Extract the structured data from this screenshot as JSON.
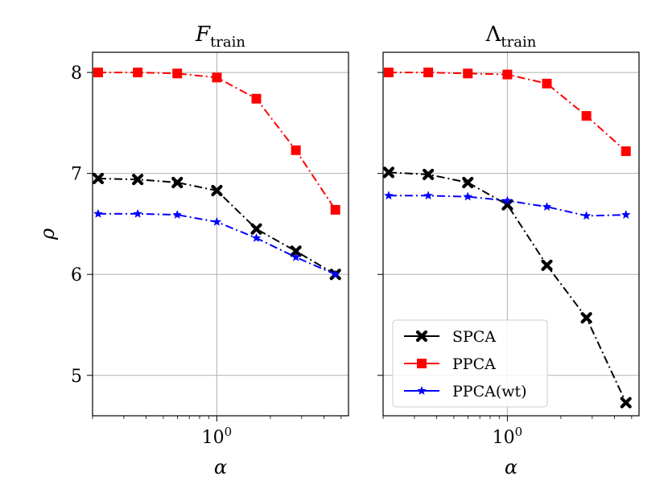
{
  "chart_data": [
    {
      "type": "line",
      "title": "F",
      "title_sub": "train",
      "xlabel": "α",
      "ylabel": "ρ",
      "xscale": "log",
      "xlim": [
        0.2,
        5.5
      ],
      "ylim": [
        4.6,
        8.2
      ],
      "yticks": [
        5,
        6,
        7,
        8
      ],
      "xticks": [
        {
          "value": 1,
          "base": "10",
          "exp": "0"
        }
      ],
      "grid": true,
      "x": [
        0.215,
        0.359,
        0.599,
        1.0,
        1.668,
        2.783,
        4.642
      ],
      "series": [
        {
          "name": "SPCA",
          "color": "#000000",
          "marker": "x",
          "values": [
            6.95,
            6.94,
            6.91,
            6.83,
            6.45,
            6.23,
            6.0
          ]
        },
        {
          "name": "PPCA",
          "color": "#ff0000",
          "marker": "square",
          "values": [
            8.0,
            8.0,
            7.99,
            7.95,
            7.74,
            7.23,
            6.64
          ]
        },
        {
          "name": "PPCA(wt)",
          "color": "#0000ff",
          "marker": "star",
          "values": [
            6.6,
            6.6,
            6.59,
            6.52,
            6.36,
            6.17,
            6.0
          ]
        }
      ]
    },
    {
      "type": "line",
      "title": "Λ",
      "title_sub": "train",
      "xlabel": "α",
      "ylabel": "",
      "xscale": "log",
      "xlim": [
        0.2,
        5.5
      ],
      "ylim": [
        4.6,
        8.2
      ],
      "yticks": [
        5,
        6,
        7,
        8
      ],
      "xticks": [
        {
          "value": 1,
          "base": "10",
          "exp": "0"
        }
      ],
      "grid": true,
      "legend": "lower-left",
      "x": [
        0.215,
        0.359,
        0.599,
        1.0,
        1.668,
        2.783,
        4.642
      ],
      "series": [
        {
          "name": "SPCA",
          "color": "#000000",
          "marker": "x",
          "values": [
            7.01,
            6.99,
            6.91,
            6.69,
            6.09,
            5.57,
            4.73
          ]
        },
        {
          "name": "PPCA",
          "color": "#ff0000",
          "marker": "square",
          "values": [
            8.0,
            8.0,
            7.99,
            7.98,
            7.89,
            7.57,
            7.22
          ]
        },
        {
          "name": "PPCA(wt)",
          "color": "#0000ff",
          "marker": "star",
          "values": [
            6.78,
            6.78,
            6.77,
            6.73,
            6.67,
            6.58,
            6.59
          ]
        }
      ]
    }
  ]
}
